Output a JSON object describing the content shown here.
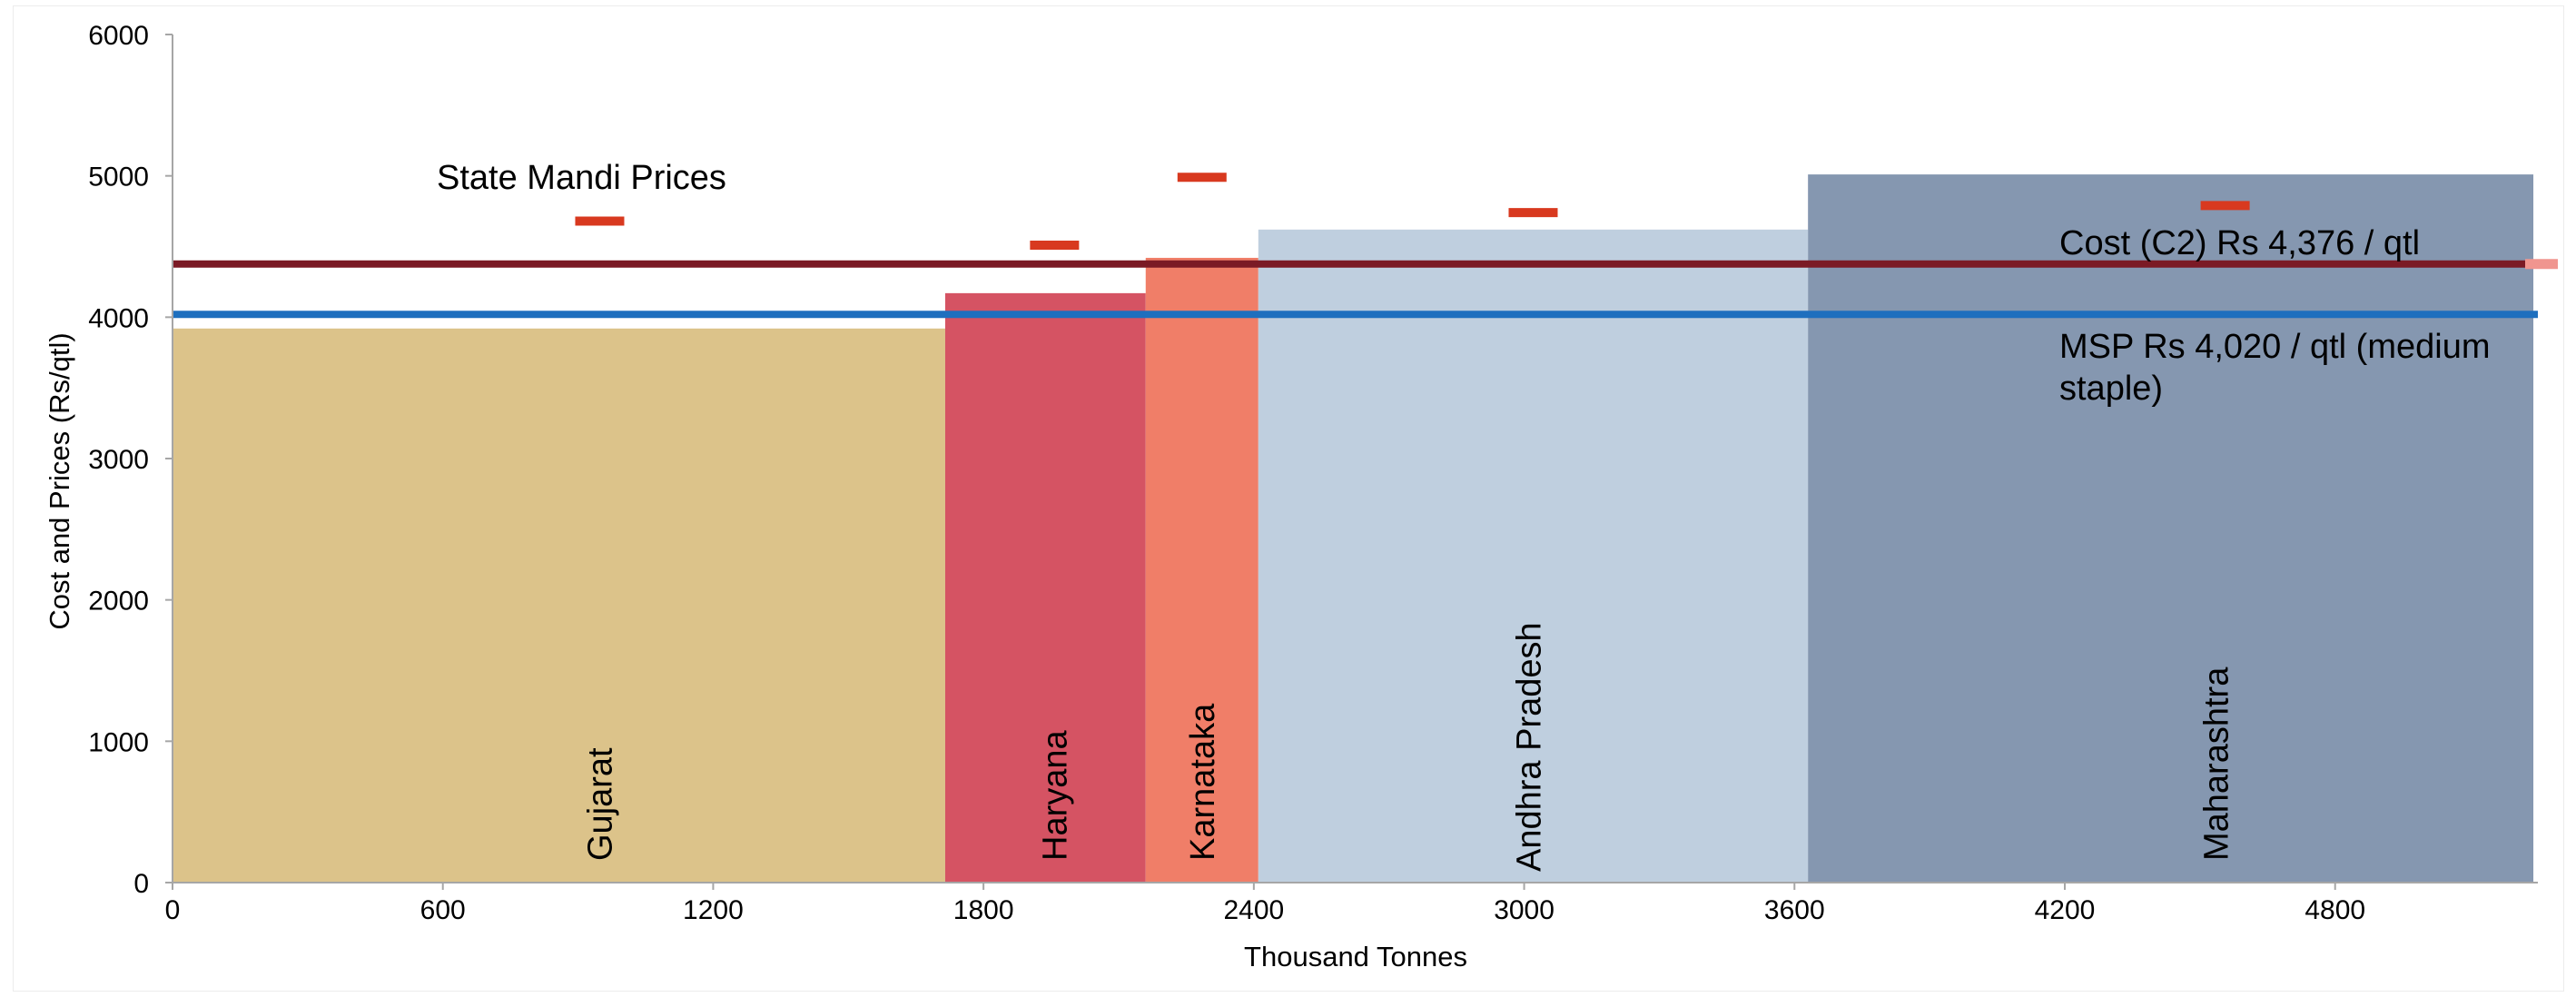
{
  "chart_data": {
    "type": "bar",
    "title": "",
    "xlabel": "Thousand Tonnes",
    "ylabel": "Cost and Prices (Rs/qtl)",
    "xlim": [
      0,
      5250
    ],
    "ylim": [
      0,
      6000
    ],
    "x_ticks": [
      "0",
      "600",
      "1200",
      "1800",
      "2400",
      "3000",
      "3600",
      "4200",
      "4800"
    ],
    "x_tick_values": [
      0,
      600,
      1200,
      1800,
      2400,
      3000,
      3600,
      4200,
      4800
    ],
    "y_ticks": [
      "0",
      "1000",
      "2000",
      "3000",
      "4000",
      "5000",
      "6000"
    ],
    "y_tick_values": [
      0,
      1000,
      2000,
      3000,
      4000,
      5000,
      6000
    ],
    "grid": false,
    "variable_width": true,
    "bars": [
      {
        "label": "Gujarat",
        "x_start": 0,
        "x_end": 1715,
        "cost": 3920,
        "mandi_price": 4680,
        "color": "#dcc38a"
      },
      {
        "label": "Haryana",
        "x_start": 1715,
        "x_end": 2160,
        "cost": 4170,
        "mandi_price": 4510,
        "color": "#d55363"
      },
      {
        "label": "Karnataka",
        "x_start": 2160,
        "x_end": 2410,
        "cost": 4420,
        "mandi_price": 4990,
        "color": "#f07e68"
      },
      {
        "label": "Andhra Pradesh",
        "x_start": 2410,
        "x_end": 3630,
        "cost": 4620,
        "mandi_price": 4740,
        "color": "#bfcfdf"
      },
      {
        "label": "Maharashtra",
        "x_start": 3630,
        "x_end": 5240,
        "cost": 5010,
        "mandi_price": 4790,
        "color": "#8597b0"
      }
    ],
    "reference_lines": [
      {
        "name": "Cost (C2) Rs 4,376 / qtl",
        "value": 4376,
        "color": "#7b1a25"
      },
      {
        "name": "MSP Rs 4,020 / qtl (medium staple)",
        "value": 4020,
        "color": "#1e6fbe"
      }
    ],
    "mandi_series_label": "State Mandi Prices",
    "mandi_color": "#d8391f",
    "annotations": {
      "cost_line_text": "Cost (C2) Rs 4,376 / qtl",
      "msp_line_text_1": "MSP Rs 4,020 / qtl (medium",
      "msp_line_text_2": "staple)",
      "mandi_text": "State Mandi Prices"
    }
  }
}
